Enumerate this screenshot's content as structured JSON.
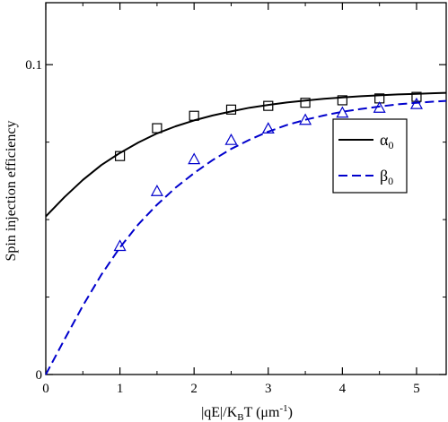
{
  "chart_data": {
    "type": "line",
    "title": "",
    "xlabel": "|qE|/K",
    "xlabel_sub": "B",
    "xlabel_tail": "T (μm",
    "xlabel_sup": "-1",
    "xlabel_close": ")",
    "ylabel": "Spin injection efficiency",
    "xlim": [
      0,
      5.4
    ],
    "ylim": [
      0,
      0.12
    ],
    "x_ticks": [
      0,
      1,
      2,
      3,
      4,
      5
    ],
    "x_tick_labels": [
      "0",
      "1",
      "2",
      "3",
      "4",
      "5"
    ],
    "y_ticks": [
      0,
      0.1
    ],
    "y_tick_labels": [
      "0",
      "0.1"
    ],
    "grid": false,
    "legend_position": "right-middle",
    "series": [
      {
        "name": "α",
        "name_sub": "0",
        "style": "solid",
        "color": "#000000",
        "marker": "square",
        "curve": {
          "x": [
            0,
            0.25,
            0.5,
            0.75,
            1,
            1.25,
            1.5,
            1.75,
            2,
            2.25,
            2.5,
            2.75,
            3,
            3.25,
            3.5,
            3.75,
            4,
            4.25,
            4.5,
            4.75,
            5,
            5.25,
            5.4
          ],
          "y": [
            0.051,
            0.0572,
            0.0628,
            0.0676,
            0.0715,
            0.0749,
            0.0778,
            0.0801,
            0.082,
            0.0836,
            0.0849,
            0.0861,
            0.087,
            0.0878,
            0.0884,
            0.089,
            0.0894,
            0.0898,
            0.0901,
            0.0904,
            0.0906,
            0.0908,
            0.0909
          ]
        },
        "points": {
          "x": [
            1,
            1.5,
            2,
            2.5,
            3,
            3.5,
            4,
            4.5,
            5
          ],
          "y": [
            0.0705,
            0.0795,
            0.0835,
            0.0855,
            0.0867,
            0.0877,
            0.0885,
            0.0891,
            0.0896
          ]
        }
      },
      {
        "name": "β",
        "name_sub": "0",
        "style": "dashed",
        "color": "#0000cc",
        "marker": "triangle",
        "curve": {
          "x": [
            0,
            0.25,
            0.5,
            0.75,
            1,
            1.25,
            1.5,
            1.75,
            2,
            2.25,
            2.5,
            2.75,
            3,
            3.25,
            3.5,
            3.75,
            4,
            4.25,
            4.5,
            4.75,
            5,
            5.25,
            5.4
          ],
          "y": [
            0,
            0.0112,
            0.0222,
            0.0322,
            0.041,
            0.0485,
            0.0548,
            0.0603,
            0.065,
            0.0692,
            0.0728,
            0.0758,
            0.0784,
            0.0805,
            0.0822,
            0.0836,
            0.0848,
            0.0857,
            0.0865,
            0.0872,
            0.0877,
            0.0881,
            0.0883
          ]
        },
        "points": {
          "x": [
            1,
            1.5,
            2,
            2.5,
            3,
            3.5,
            4,
            4.5,
            5
          ],
          "y": [
            0.0415,
            0.0592,
            0.0695,
            0.0757,
            0.0794,
            0.0822,
            0.0845,
            0.0861,
            0.0873
          ]
        }
      }
    ]
  }
}
